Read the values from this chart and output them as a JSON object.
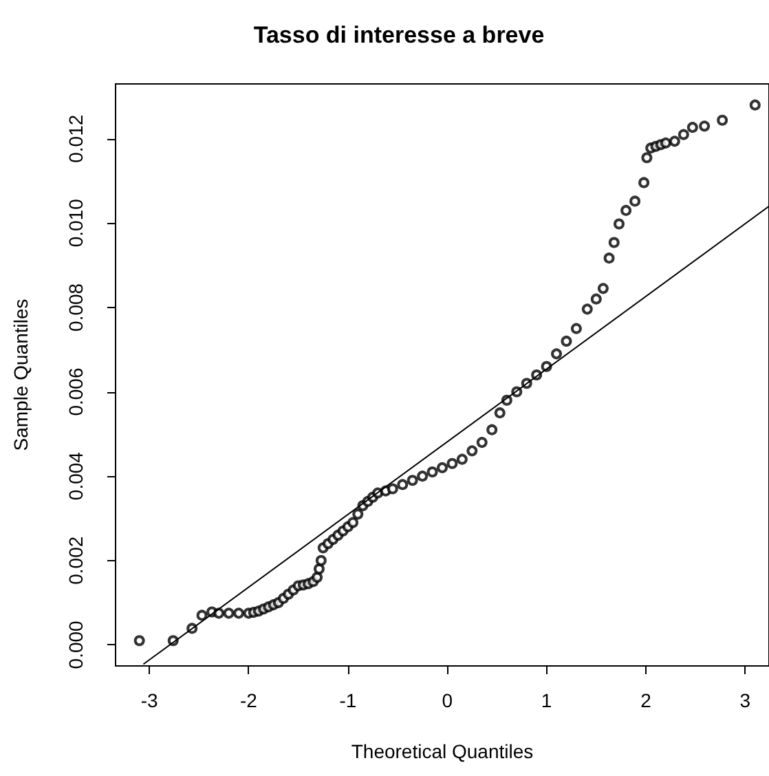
{
  "chart_data": {
    "type": "scatter",
    "title": "Tasso di interesse a breve",
    "xlabel": "Theoretical Quantiles",
    "ylabel": "Sample Quantiles",
    "xlim": [
      -3.34,
      3.24
    ],
    "ylim": [
      -0.0005,
      0.0133
    ],
    "xticks": [
      -3,
      -2,
      -1,
      0,
      1,
      2,
      3
    ],
    "yticks": [
      {
        "value": 0,
        "label": "0.000"
      },
      {
        "value": 0.002,
        "label": "0.002"
      },
      {
        "value": 0.004,
        "label": "0.004"
      },
      {
        "value": 0.006,
        "label": "0.006"
      },
      {
        "value": 0.008,
        "label": "0.008"
      },
      {
        "value": 0.01,
        "label": "0.010"
      },
      {
        "value": 0.012,
        "label": "0.012"
      }
    ],
    "grid": false,
    "series": [
      {
        "marker": "circle",
        "color": "#000000",
        "x": [
          -3.1,
          -2.76,
          -2.57,
          -2.47,
          -2.37,
          -2.3,
          -2.2,
          -2.1,
          -2.0,
          -1.95,
          -1.9,
          -1.85,
          -1.8,
          -1.75,
          -1.7,
          -1.65,
          -1.6,
          -1.55,
          -1.5,
          -1.45,
          -1.4,
          -1.35,
          -1.31,
          -1.29,
          -1.27,
          -1.25,
          -1.2,
          -1.15,
          -1.1,
          -1.05,
          -1.0,
          -0.95,
          -0.9,
          -0.85,
          -0.8,
          -0.75,
          -0.7,
          -0.62,
          -0.55,
          -0.45,
          -0.35,
          -0.25,
          -0.15,
          -0.05,
          0.05,
          0.15,
          0.25,
          0.35,
          0.45,
          0.53,
          0.6,
          0.7,
          0.8,
          0.9,
          1.0,
          1.1,
          1.2,
          1.3,
          1.41,
          1.5,
          1.57,
          1.63,
          1.68,
          1.73,
          1.8,
          1.89,
          1.98,
          2.01,
          2.05,
          2.1,
          2.15,
          2.2,
          2.29,
          2.38,
          2.47,
          2.59,
          2.77,
          3.1
        ],
        "values": [
          0.0001,
          0.0001,
          0.00039,
          0.0007,
          0.00078,
          0.00075,
          0.00075,
          0.00075,
          0.00075,
          0.00077,
          0.0008,
          0.00085,
          0.0009,
          0.00095,
          0.001,
          0.0011,
          0.0012,
          0.0013,
          0.0014,
          0.00142,
          0.00145,
          0.0015,
          0.0016,
          0.0018,
          0.002,
          0.0023,
          0.0024,
          0.0025,
          0.0026,
          0.0027,
          0.0028,
          0.0029,
          0.0031,
          0.0033,
          0.0034,
          0.0035,
          0.0036,
          0.00365,
          0.0037,
          0.0038,
          0.0039,
          0.004,
          0.0041,
          0.0042,
          0.0043,
          0.0044,
          0.0046,
          0.0048,
          0.0051,
          0.0055,
          0.0058,
          0.006,
          0.0062,
          0.0064,
          0.0066,
          0.0069,
          0.0072,
          0.0075,
          0.00796,
          0.0082,
          0.00845,
          0.00917,
          0.00954,
          0.00998,
          0.0103,
          0.01052,
          0.01096,
          0.01155,
          0.01178,
          0.01182,
          0.01186,
          0.0119,
          0.01194,
          0.0121,
          0.01227,
          0.0123,
          0.01244,
          0.0128
        ]
      },
      {
        "type": "line",
        "marker": "none",
        "color": "#000000",
        "x": [
          -3.06,
          3.24
        ],
        "values": [
          -0.00046,
          0.0104
        ]
      }
    ]
  }
}
